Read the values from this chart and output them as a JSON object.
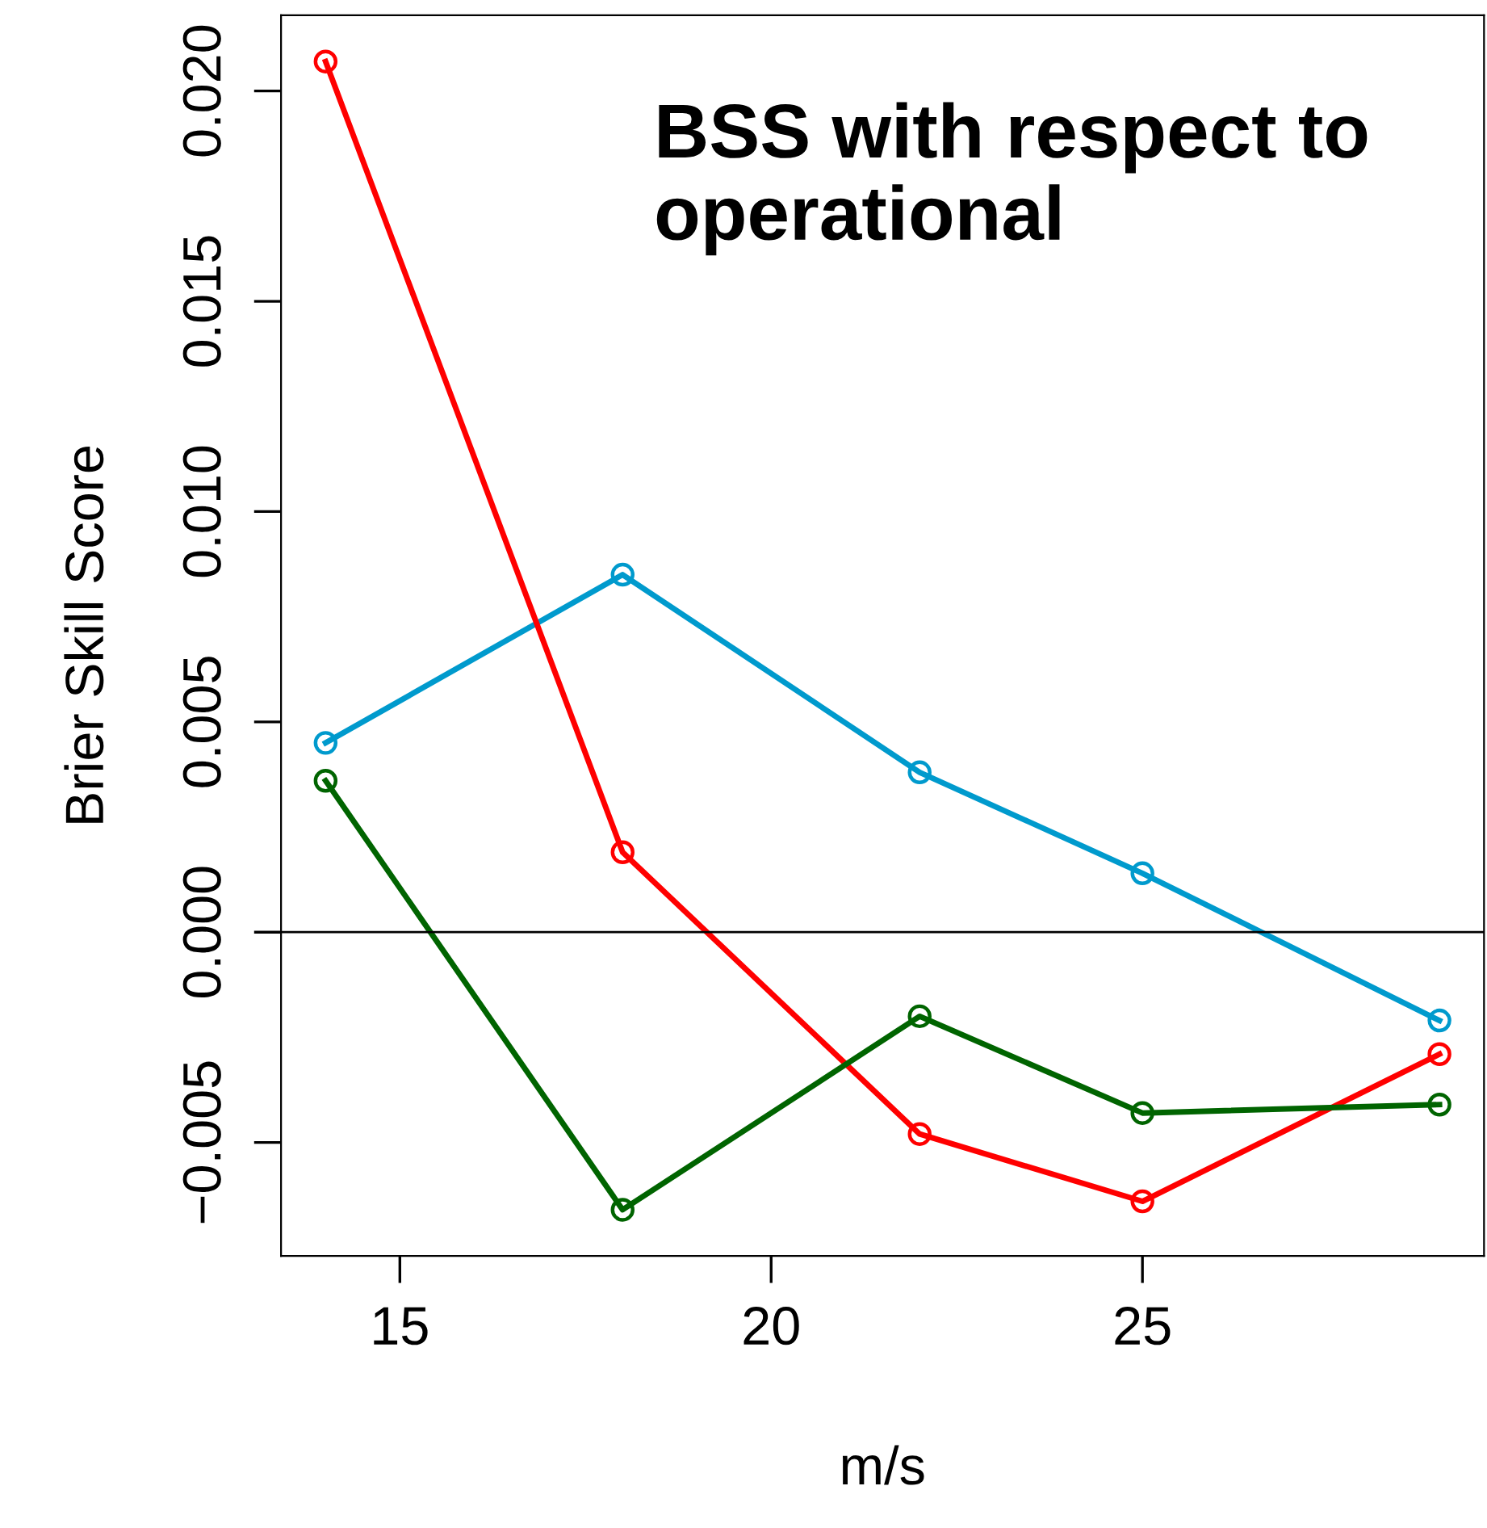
{
  "chart_data": {
    "type": "line",
    "xlabel": "m/s",
    "ylabel": "Brier Skill Score",
    "annotations": [
      "BSS with respect to\noperational"
    ],
    "x": [
      14,
      18,
      22,
      25,
      29
    ],
    "series": [
      {
        "color": "#009acd",
        "values": [
          0.0045,
          0.0085,
          0.0038,
          0.0014,
          -0.0021
        ]
      },
      {
        "color": "#ff0000",
        "values": [
          0.0207,
          0.0019,
          -0.0048,
          -0.0064,
          -0.0029
        ]
      },
      {
        "color": "#006400",
        "values": [
          0.0036,
          -0.0066,
          -0.002,
          -0.0043,
          -0.0041
        ]
      }
    ],
    "xlim": [
      13.4,
      29.6
    ],
    "ylim": [
      -0.0077,
      0.0218
    ],
    "xticks": [
      15,
      20,
      25
    ],
    "yticks": [
      {
        "value": -0.005,
        "label": "−0.005"
      },
      {
        "value": 0,
        "label": "0.000"
      },
      {
        "value": 0.005,
        "label": "0.005"
      },
      {
        "value": 0.01,
        "label": "0.010"
      },
      {
        "value": 0.015,
        "label": "0.015"
      },
      {
        "value": 0.02,
        "label": "0.020"
      }
    ],
    "ref_lines": [
      {
        "axis": "y",
        "value": 0,
        "color": "#000000"
      }
    ],
    "marker": "circle",
    "line_style": "solid",
    "grid": false,
    "legend": false
  }
}
